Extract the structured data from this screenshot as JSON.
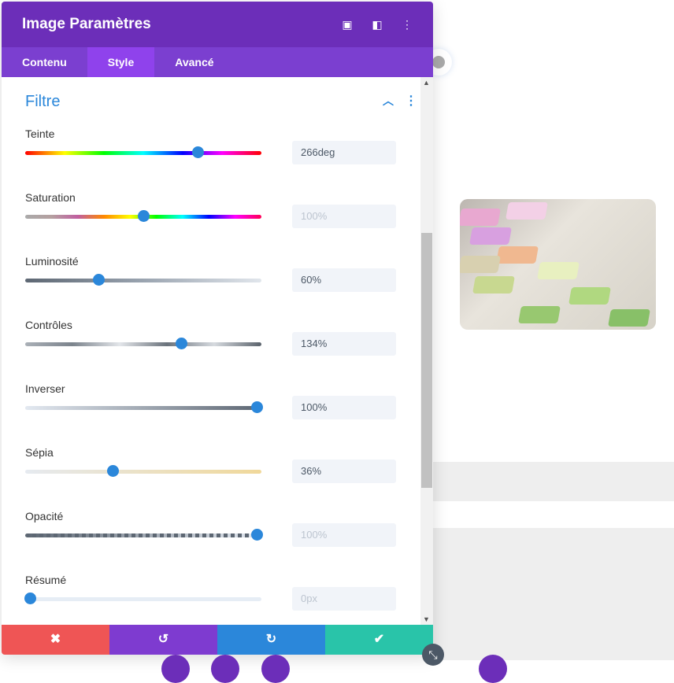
{
  "header": {
    "title": "Image Paramètres",
    "icons": [
      "focus-icon",
      "sidebar-layout-icon",
      "more-vertical-icon"
    ]
  },
  "tabs": [
    {
      "label": "Contenu"
    },
    {
      "label": "Style",
      "active": true
    },
    {
      "label": "Avancé"
    }
  ],
  "section": {
    "title": "Filtre"
  },
  "filters": [
    {
      "label": "Teinte",
      "value": "266deg",
      "percent": 73,
      "dim": false
    },
    {
      "label": "Saturation",
      "value": "100%",
      "percent": 50,
      "dim": true
    },
    {
      "label": "Luminosité",
      "value": "60%",
      "percent": 31,
      "dim": false
    },
    {
      "label": "Contrôles",
      "value": "134%",
      "percent": 66,
      "dim": false
    },
    {
      "label": "Inverser",
      "value": "100%",
      "percent": 98,
      "dim": false
    },
    {
      "label": "Sépia",
      "value": "36%",
      "percent": 37,
      "dim": false
    },
    {
      "label": "Opacité",
      "value": "100%",
      "percent": 98,
      "dim": true
    },
    {
      "label": "Résumé",
      "value": "0px",
      "percent": 2,
      "dim": true
    }
  ],
  "footer": {
    "cancel": "✖",
    "undo": "↺",
    "redo": "↻",
    "save": "✔"
  },
  "colors": {
    "header": "#6c2eb9",
    "tabs": "#7b3fd0",
    "active_tab": "#8f42ec",
    "accent": "#2b87da",
    "cancel": "#ef5555",
    "undo": "#7e3bd0",
    "redo": "#2b87da",
    "save": "#29c4a9"
  }
}
